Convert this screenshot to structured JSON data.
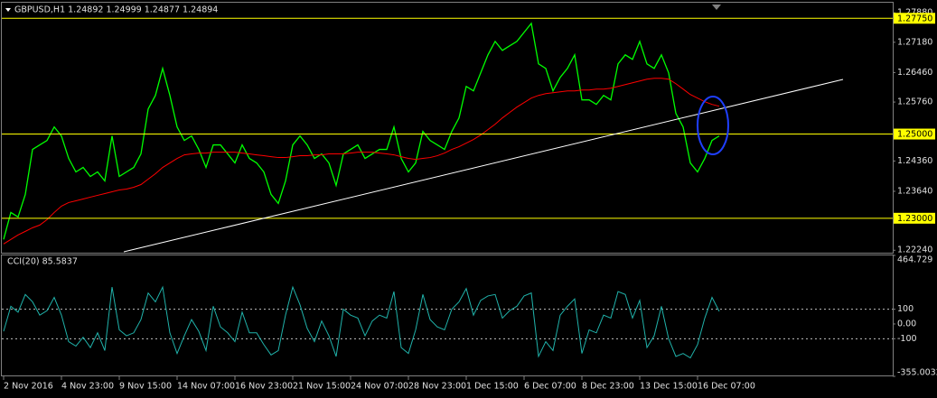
{
  "chart_data": [
    {
      "type": "line",
      "title": "GBPUSD,H1 1.24892 1.24999 1.24877 1.24894",
      "categories": [
        "2 Nov 2016",
        null,
        null,
        null,
        null,
        null,
        null,
        null,
        "4 Nov 23:00",
        null,
        null,
        null,
        null,
        null,
        null,
        null,
        "9 Nov 15:00",
        null,
        null,
        null,
        null,
        null,
        null,
        null,
        "14 Nov 07:00",
        null,
        null,
        null,
        null,
        null,
        null,
        null,
        "16 Nov 23:00",
        null,
        null,
        null,
        null,
        null,
        null,
        null,
        "21 Nov 15:00",
        null,
        null,
        null,
        null,
        null,
        null,
        null,
        "24 Nov 07:00",
        null,
        null,
        null,
        null,
        null,
        null,
        null,
        "28 Nov 23:00",
        null,
        null,
        null,
        null,
        null,
        null,
        null,
        "1 Dec 15:00",
        null,
        null,
        null,
        null,
        null,
        null,
        null,
        "6 Dec 07:00",
        null,
        null,
        null,
        null,
        null,
        null,
        null,
        "8 Dec 23:00",
        null,
        null,
        null,
        null,
        null,
        null,
        null,
        "13 Dec 15:00",
        null,
        null,
        null,
        null,
        null,
        null,
        null,
        "16 Dec 07:00",
        null,
        null,
        null
      ],
      "series": [
        {
          "color": "#00ff00",
          "values": [
            1.22496,
            1.23137,
            1.2303,
            1.23565,
            1.24635,
            1.24742,
            1.24848,
            1.25169,
            1.24955,
            1.24421,
            1.241,
            1.24207,
            1.23993,
            1.241,
            1.23886,
            1.24955,
            1.23993,
            1.241,
            1.24207,
            1.24528,
            1.25597,
            1.25918,
            1.2656,
            1.25918,
            1.25169,
            1.24848,
            1.24955,
            1.24635,
            1.24207,
            1.24742,
            1.24742,
            1.24528,
            1.24314,
            1.24742,
            1.24421,
            1.24314,
            1.241,
            1.23565,
            1.23351,
            1.23886,
            1.24742,
            1.24955,
            1.24742,
            1.24421,
            1.24528,
            1.24314,
            1.23779,
            1.24528,
            1.24635,
            1.24742,
            1.24421,
            1.24528,
            1.24635,
            1.24635,
            1.25169,
            1.24421,
            1.241,
            1.24314,
            1.25062,
            1.24848,
            1.24742,
            1.24635,
            1.25062,
            1.25383,
            1.26132,
            1.26025,
            1.26453,
            1.26881,
            1.27201,
            1.26987,
            1.27094,
            1.27201,
            1.27415,
            1.27629,
            1.26667,
            1.2656,
            1.26025,
            1.26346,
            1.2656,
            1.26881,
            1.25811,
            1.25811,
            1.25704,
            1.25918,
            1.25811,
            1.26667,
            1.26881,
            1.26774,
            1.27201,
            1.26667,
            1.2656,
            1.26881,
            1.26453,
            1.2549,
            1.25169,
            1.24314,
            1.241,
            1.24421,
            1.24848,
            1.24955
          ]
        },
        {
          "color": "#ff0000",
          "values": [
            1.22389,
            1.22496,
            1.22603,
            1.22688,
            1.22774,
            1.22838,
            1.22966,
            1.23137,
            1.23287,
            1.23373,
            1.23415,
            1.23458,
            1.23501,
            1.23544,
            1.23586,
            1.23629,
            1.23672,
            1.23693,
            1.23736,
            1.238,
            1.23929,
            1.24057,
            1.24207,
            1.24314,
            1.24421,
            1.24506,
            1.24528,
            1.24549,
            1.24549,
            1.2457,
            1.2457,
            1.2457,
            1.2457,
            1.24549,
            1.24528,
            1.24506,
            1.24485,
            1.24463,
            1.24442,
            1.24442,
            1.24463,
            1.24485,
            1.24485,
            1.24506,
            1.24506,
            1.24528,
            1.24528,
            1.24528,
            1.24549,
            1.2457,
            1.2457,
            1.2457,
            1.24549,
            1.24528,
            1.24506,
            1.24463,
            1.24421,
            1.24399,
            1.24421,
            1.24442,
            1.24485,
            1.24549,
            1.24635,
            1.24699,
            1.24784,
            1.2487,
            1.24977,
            1.25105,
            1.25234,
            1.25383,
            1.25512,
            1.2564,
            1.25747,
            1.25854,
            1.25918,
            1.25961,
            1.25982,
            1.26004,
            1.26025,
            1.26025,
            1.26046,
            1.26046,
            1.26068,
            1.26068,
            1.26089,
            1.26132,
            1.26175,
            1.26217,
            1.2626,
            1.26303,
            1.26324,
            1.26324,
            1.26303,
            1.26196,
            1.26068,
            1.25939,
            1.25854,
            1.25768,
            1.25704,
            1.25661
          ]
        }
      ],
      "ylim": [
        1.2216,
        1.2812
      ],
      "yticks": [
        {
          "value": 1.2788,
          "label": "1.27880"
        },
        {
          "value": 1.2718,
          "label": "1.27180"
        },
        {
          "value": 1.2646,
          "label": "1.26460"
        },
        {
          "value": 1.2576,
          "label": "1.25760"
        },
        {
          "value": 1.2436,
          "label": "1.24360"
        },
        {
          "value": 1.2364,
          "label": "1.23640"
        },
        {
          "value": 1.2224,
          "label": "1.22240"
        }
      ],
      "hlines": [
        {
          "value": 1.2775,
          "label": "1.27750"
        },
        {
          "value": 1.25,
          "label": "1.25000"
        },
        {
          "value": 1.23,
          "label": "1.23000"
        }
      ],
      "hline_color": "#ffff00"
    },
    {
      "type": "line",
      "title": "CCI(20) 85.5837",
      "series": [
        {
          "color": "#20b2aa",
          "values": [
            -50,
            120,
            80,
            200,
            150,
            60,
            90,
            180,
            60,
            -120,
            -150,
            -90,
            -160,
            -60,
            -180,
            250,
            -40,
            -80,
            -60,
            30,
            210,
            150,
            250,
            -60,
            -200,
            -80,
            30,
            -50,
            -180,
            120,
            -20,
            -60,
            -120,
            80,
            -60,
            -60,
            -140,
            -210,
            -180,
            60,
            250,
            130,
            -30,
            -120,
            20,
            -80,
            -220,
            100,
            60,
            40,
            -80,
            20,
            60,
            40,
            220,
            -160,
            -200,
            -40,
            200,
            30,
            -20,
            -40,
            100,
            150,
            240,
            60,
            160,
            190,
            200,
            40,
            90,
            120,
            190,
            210,
            -220,
            -120,
            -180,
            60,
            120,
            170,
            -200,
            -40,
            -60,
            60,
            40,
            220,
            200,
            40,
            160,
            -160,
            -80,
            120,
            -100,
            -220,
            -200,
            -230,
            -140,
            40,
            180,
            85.5837
          ]
        }
      ],
      "ylim": [
        -355.0032,
        464.729
      ],
      "yticks": [
        464.729,
        100,
        {
          "value": 0,
          "label": "0.00"
        },
        -100,
        -355.0032
      ],
      "levels": [
        100,
        -100
      ]
    }
  ]
}
